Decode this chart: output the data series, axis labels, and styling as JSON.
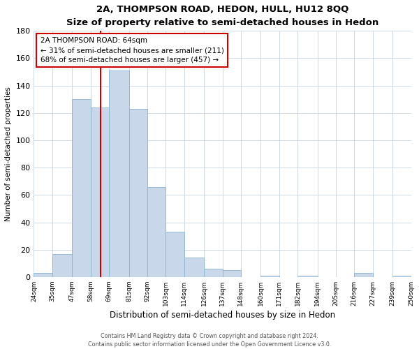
{
  "title": "2A, THOMPSON ROAD, HEDON, HULL, HU12 8QQ",
  "subtitle": "Size of property relative to semi-detached houses in Hedon",
  "xlabel": "Distribution of semi-detached houses by size in Hedon",
  "ylabel": "Number of semi-detached properties",
  "bin_labels": [
    "24sqm",
    "35sqm",
    "47sqm",
    "58sqm",
    "69sqm",
    "81sqm",
    "92sqm",
    "103sqm",
    "114sqm",
    "126sqm",
    "137sqm",
    "148sqm",
    "160sqm",
    "171sqm",
    "182sqm",
    "194sqm",
    "205sqm",
    "216sqm",
    "227sqm",
    "239sqm",
    "250sqm"
  ],
  "bar_heights": [
    3,
    17,
    130,
    124,
    151,
    123,
    66,
    33,
    14,
    6,
    5,
    0,
    1,
    0,
    1,
    0,
    0,
    3,
    0,
    1
  ],
  "bar_color": "#c8d8ea",
  "bar_edge_color": "#8ab4d0",
  "vline_x": 64,
  "vline_color": "#cc0000",
  "annotation_title": "2A THOMPSON ROAD: 64sqm",
  "annotation_line1": "← 31% of semi-detached houses are smaller (211)",
  "annotation_line2": "68% of semi-detached houses are larger (457) →",
  "annotation_box_edge": "#cc0000",
  "ylim": [
    0,
    180
  ],
  "yticks": [
    0,
    20,
    40,
    60,
    80,
    100,
    120,
    140,
    160,
    180
  ],
  "footer1": "Contains HM Land Registry data © Crown copyright and database right 2024.",
  "footer2": "Contains public sector information licensed under the Open Government Licence v3.0.",
  "bin_edges": [
    24,
    35,
    47,
    58,
    69,
    81,
    92,
    103,
    114,
    126,
    137,
    148,
    160,
    171,
    182,
    194,
    205,
    216,
    227,
    239,
    250
  ]
}
